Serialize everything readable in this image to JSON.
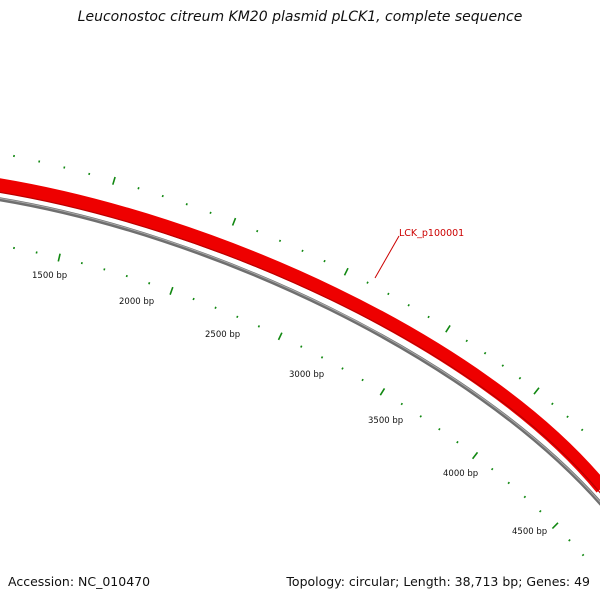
{
  "title": "Leuconostoc citreum KM20 plasmid pLCK1, complete sequence",
  "accession": "Accession: NC_010470",
  "summary": "Topology: circular; Length: 38,713 bp; Genes: 49",
  "scale_labels": [
    "1500 bp",
    "2000 bp",
    "2500 bp",
    "3000 bp",
    "3500 bp",
    "4000 bp",
    "4500 bp"
  ],
  "gene_label": "LCK_p100001",
  "colors": {
    "gene": "#ee0000",
    "gene_dark": "#bb0000",
    "backbone": "#7f7f7f",
    "ticks": "#118811",
    "gene_label": "#cc0000"
  }
}
